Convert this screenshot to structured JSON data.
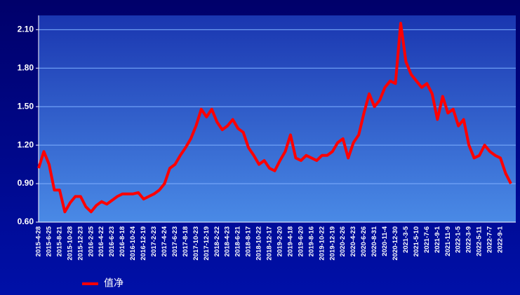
{
  "chart_data": {
    "type": "line",
    "categories": [
      "2015-4-28",
      null,
      "2015-6-25",
      null,
      "2015-8-21",
      null,
      "2015-10-28",
      null,
      "2015-12-23",
      null,
      "2016-2-25",
      null,
      "2016-4-22",
      null,
      "2016-6-23",
      null,
      "2016-8-18",
      null,
      "2016-10-24",
      null,
      "2016-12-19",
      null,
      "2017-2-23",
      null,
      "2017-4-24",
      null,
      "2017-6-23",
      null,
      "2017-8-18",
      null,
      "2017-10-23",
      null,
      "2017-12-19",
      null,
      "2018-2-22",
      null,
      "2018-4-23",
      null,
      "2018-6-21",
      null,
      "2018-8-17",
      null,
      "2018-10-22",
      null,
      "2018-12-17",
      null,
      "2019-2-20",
      null,
      "2019-4-18",
      null,
      "2019-6-20",
      null,
      "2019-8-16",
      null,
      "2019-10-22",
      null,
      "2019-12-19",
      null,
      "2020-2-26",
      null,
      "2020-4-23",
      null,
      "2020-6-26",
      null,
      "2020-8-31",
      null,
      "2020-11-4",
      null,
      "2020-12-30",
      null,
      "2021-3-5",
      null,
      "2021-5-10",
      null,
      "2021-7-6",
      null,
      "2021-9-1",
      null,
      "2021-11-9",
      null,
      "2022-1-5",
      null,
      "2022-3-9",
      null,
      "2022-5-11",
      null,
      "2022-7-7",
      null,
      "2022-9-1",
      null,
      null
    ],
    "series": [
      {
        "name": "值净",
        "color": "#ff0000",
        "values": [
          1.02,
          1.15,
          1.05,
          0.85,
          0.85,
          0.68,
          0.75,
          0.8,
          0.8,
          0.72,
          0.68,
          0.73,
          0.76,
          0.74,
          0.77,
          0.8,
          0.82,
          0.82,
          0.82,
          0.83,
          0.78,
          0.8,
          0.82,
          0.85,
          0.9,
          1.02,
          1.05,
          1.12,
          1.18,
          1.25,
          1.35,
          1.48,
          1.42,
          1.48,
          1.38,
          1.32,
          1.35,
          1.4,
          1.33,
          1.3,
          1.18,
          1.12,
          1.05,
          1.08,
          1.02,
          1.0,
          1.08,
          1.15,
          1.28,
          1.1,
          1.08,
          1.12,
          1.1,
          1.08,
          1.12,
          1.12,
          1.15,
          1.22,
          1.25,
          1.1,
          1.22,
          1.28,
          1.45,
          1.6,
          1.5,
          1.55,
          1.65,
          1.7,
          1.68,
          2.15,
          1.85,
          1.75,
          1.7,
          1.65,
          1.68,
          1.6,
          1.4,
          1.58,
          1.45,
          1.48,
          1.35,
          1.4,
          1.2,
          1.1,
          1.12,
          1.2,
          1.15,
          1.12,
          1.1,
          0.98,
          0.9
        ]
      }
    ],
    "ylim": [
      0.6,
      2.2
    ],
    "yticks": [
      {
        "value": 0.6,
        "label": "0.60"
      },
      {
        "value": 0.9,
        "label": "0.90"
      },
      {
        "value": 1.2,
        "label": "1.20"
      },
      {
        "value": 1.5,
        "label": "1.50"
      },
      {
        "value": 1.8,
        "label": "1.80"
      },
      {
        "value": 2.1,
        "label": "2.10"
      }
    ],
    "grid": true,
    "legend": "bottom-left"
  }
}
